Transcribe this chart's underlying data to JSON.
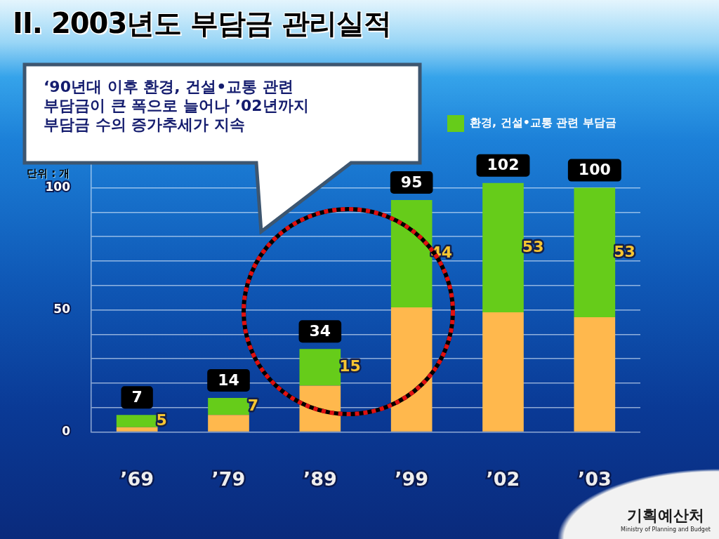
{
  "chart_data": {
    "type": "bar",
    "title": "II. 2003년도 부담금 관리실적",
    "ylabel": "단위 : 개",
    "categories": [
      "’69",
      "’79",
      "’89",
      "’99",
      "’02",
      "’03"
    ],
    "stacked": true,
    "series": [
      {
        "color": "#ffb84d",
        "values": [
          2,
          7,
          19,
          51,
          49,
          47
        ]
      },
      {
        "name": "환경, 건설•교통 관련 부담금",
        "color": "#66cc1a",
        "values": [
          5,
          7,
          15,
          44,
          53,
          53
        ],
        "value_labels": [
          "5",
          "7",
          "15",
          "44",
          "53",
          "53"
        ]
      }
    ],
    "totals": [
      "7",
      "14",
      "34",
      "95",
      "102",
      "100"
    ],
    "ylim": [
      0,
      120
    ],
    "yticks": [
      0,
      {
        "value": 10,
        "label": null
      },
      {
        "value": 20,
        "label": null
      },
      {
        "value": 30,
        "label": null
      },
      {
        "value": 40,
        "label": null
      },
      50,
      {
        "value": 60,
        "label": null
      },
      {
        "value": 70,
        "label": null
      },
      {
        "value": 80,
        "label": null
      },
      {
        "value": 90,
        "label": null
      },
      100
    ],
    "grid": "y",
    "legend": "top right",
    "annotations": [
      "‘90년대 이후 환경, 건설•교통 관련 부담금이 큰 폭으로 늘어나 ’02년까지 부담금 수의 증가추세가 지속",
      "기획예산처",
      "Ministry of Planning and Budget"
    ]
  }
}
